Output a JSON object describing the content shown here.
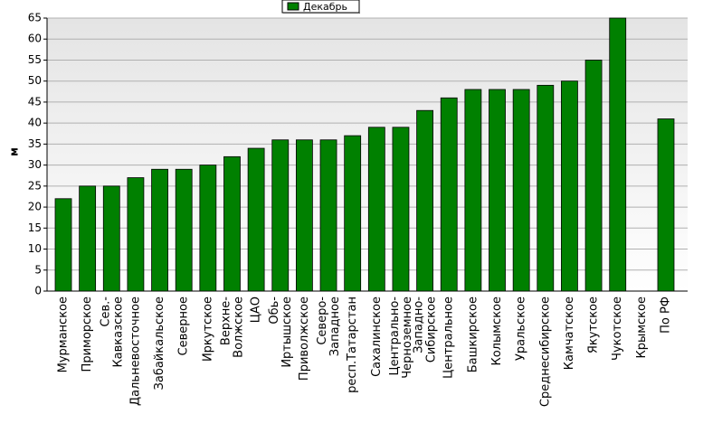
{
  "chart_data": {
    "type": "bar",
    "y_label": "м",
    "categories": [
      "Мурманское",
      "Приморское",
      "Сев.-Кавказское",
      "Дальневосточное",
      "Забайкальское",
      "Северное",
      "Иркутское",
      "Верхне-Волжское",
      "ЦАО",
      "Обь-Иртышское",
      "Приволжское",
      "Северо-Западное",
      "респ.Татарстан",
      "Сахалинское",
      "Центрально-Черноземное",
      "Западно-Сибирское",
      "Центральное",
      "Башкирское",
      "Колымское",
      "Уральское",
      "Среднесибирское",
      "Камчатское",
      "Якутское",
      "Чукотское",
      "Крымское",
      "По РФ"
    ],
    "series": [
      {
        "name": "Декабрь",
        "color": "#008000",
        "values": [
          22,
          25,
          25,
          27,
          29,
          29,
          30,
          32,
          34,
          36,
          36,
          36,
          37,
          39,
          39,
          43,
          46,
          48,
          48,
          48,
          49,
          50,
          55,
          65,
          null,
          41
        ]
      }
    ],
    "ylim": [
      0,
      65
    ],
    "yticks": [
      0,
      5,
      10,
      15,
      20,
      25,
      30,
      35,
      40,
      45,
      50,
      55,
      60,
      65
    ],
    "grid": true,
    "legend": "top"
  }
}
